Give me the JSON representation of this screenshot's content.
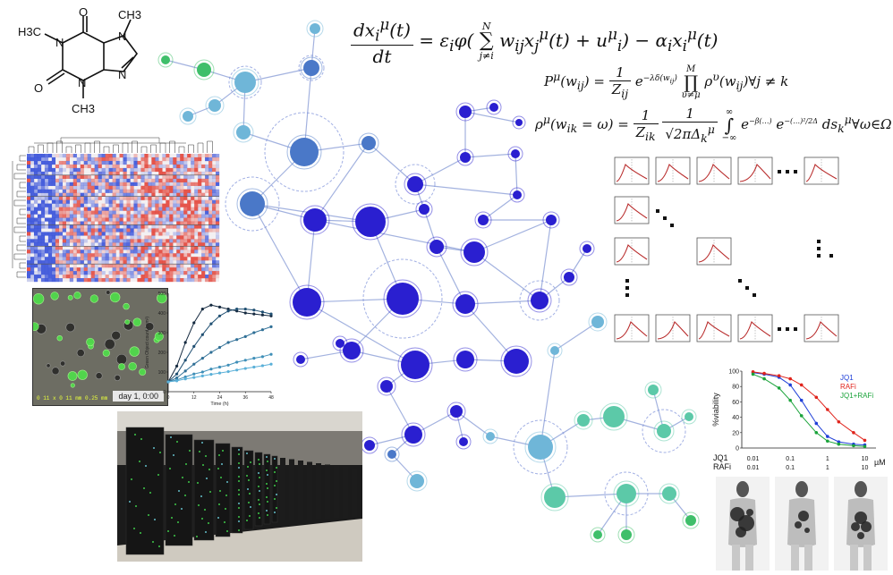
{
  "equations": {
    "eq1": {
      "numerator": "dx",
      "num_sub": "i",
      "num_sup": "μ",
      "num_arg": "(t)",
      "denominator": "dt",
      "rhs_start": "= ε",
      "rhs_i": "i",
      "phi": "φ",
      "sum_top": "N",
      "sum_bottom": "j≠i",
      "sum_body": "w",
      "w_sub": "ij",
      "x_sub": "j",
      "x_sup": "μ",
      "u_sup": "μ",
      "u_sub": "i",
      "tail": "− α",
      "alpha_sub": "i",
      "tail_x_sub": "i",
      "tail_x_sup": "μ",
      "arg": "(t)"
    },
    "eq2": {
      "lhs": "P",
      "lhs_sup": "μ",
      "lhs_arg": "(w",
      "lhs_sub": "ij",
      "one": "1",
      "Z": "Z",
      "Z_sub": "ij",
      "exp": "e",
      "exp_sup": "−λδ(w",
      "prod_top": "M",
      "prod_bottom": "υ≠μ",
      "body": "ρ",
      "body_sup": "υ",
      "forall": "∀j ≠ k"
    },
    "eq3": {
      "lhs": "ρ",
      "lhs_sup": "μ",
      "lhs_arg": "(w",
      "lhs_sub": "ik",
      "eq_omega": "= ω) =",
      "one": "1",
      "Z": "Z",
      "Z_sub": "ik",
      "sqrt": "√2πΔ",
      "sqrt_sub": "k",
      "sqrt_sup": "μ",
      "int_top": "∞",
      "int_bottom": "−∞",
      "ds": "ds",
      "ds_sub": "k",
      "ds_sup": "μ",
      "tail": "∀ω∈Ω"
    }
  },
  "molecule": {
    "groups": [
      "O",
      "O",
      "N",
      "N",
      "N",
      "N",
      "CH3",
      "CH3",
      "CH3"
    ],
    "methyl_left": "H3C",
    "methyl_right": "CH3",
    "methyl_bottom": "CH3"
  },
  "microscope": {
    "day_label": "day 1, 0:00",
    "scale_text": "0 11 x 0 11 mm   0.25 mm"
  },
  "growth_chart": {
    "ylabel": "Green Object count (mm²)",
    "xlabel": "Time (h)",
    "yticks": [
      "0",
      "100",
      "200",
      "300",
      "400",
      "500"
    ],
    "xticks": [
      "0",
      "12",
      "24",
      "36",
      "48"
    ]
  },
  "viability_chart": {
    "ylabel": "%viability",
    "yticks": [
      "100",
      "80",
      "60",
      "40",
      "20",
      "0"
    ],
    "legend": [
      {
        "name": "JQ1",
        "color": "#1f3fd8"
      },
      {
        "name": "RAFi",
        "color": "#e0241c"
      },
      {
        "name": "JQ1+RAFi",
        "color": "#1aa33a"
      }
    ],
    "row1_label": "JQ1",
    "row2_label": "RAFi",
    "row1_ticks": [
      "0.01",
      "0.1",
      "1",
      "10"
    ],
    "row2_ticks": [
      "0.01",
      "0.1",
      "1",
      "10"
    ],
    "unit": "µM"
  },
  "colors": {
    "node_deep": "#2a1fd0",
    "node_mid": "#4a78c8",
    "node_light": "#6fb6d8",
    "node_teal": "#5cc9a8",
    "node_green": "#3fbf6a",
    "edge": "#8da0d8",
    "heat_red": "#e23a2e",
    "heat_blue": "#2a46d8",
    "dist_line": "#b82a2a"
  },
  "chart_data": [
    {
      "type": "line",
      "title": "",
      "xlabel": "Time (h)",
      "ylabel": "Green Object count (mm²)",
      "xlim": [
        0,
        48
      ],
      "ylim": [
        0,
        500
      ],
      "x": [
        0,
        4,
        8,
        12,
        16,
        20,
        24,
        28,
        32,
        36,
        40,
        44,
        48
      ],
      "series": [
        {
          "values": [
            50,
            130,
            250,
            350,
            420,
            440,
            430,
            420,
            410,
            400,
            395,
            390,
            385
          ]
        },
        {
          "values": [
            50,
            90,
            160,
            230,
            290,
            345,
            385,
            410,
            420,
            420,
            415,
            405,
            395
          ]
        },
        {
          "values": [
            50,
            70,
            105,
            140,
            170,
            200,
            225,
            250,
            265,
            280,
            300,
            315,
            330
          ]
        },
        {
          "values": [
            50,
            60,
            75,
            90,
            100,
            115,
            125,
            135,
            150,
            160,
            170,
            178,
            190
          ]
        },
        {
          "values": [
            50,
            55,
            65,
            72,
            80,
            88,
            95,
            102,
            110,
            118,
            125,
            132,
            140
          ]
        }
      ]
    },
    {
      "type": "scatter",
      "title": "",
      "ylabel": "%viability",
      "ylim": [
        0,
        100
      ],
      "xlim": [
        0.005,
        20
      ],
      "x": [
        0.01,
        0.02,
        0.05,
        0.1,
        0.2,
        0.5,
        1,
        2,
        5,
        10
      ],
      "series": [
        {
          "name": "JQ1",
          "values": [
            98,
            96,
            92,
            82,
            62,
            32,
            15,
            8,
            5,
            4
          ]
        },
        {
          "name": "RAFi",
          "values": [
            99,
            97,
            94,
            90,
            82,
            66,
            50,
            34,
            20,
            10
          ]
        },
        {
          "name": "JQ1+RAFi",
          "values": [
            96,
            90,
            78,
            62,
            42,
            20,
            9,
            5,
            3,
            2
          ]
        }
      ]
    }
  ]
}
